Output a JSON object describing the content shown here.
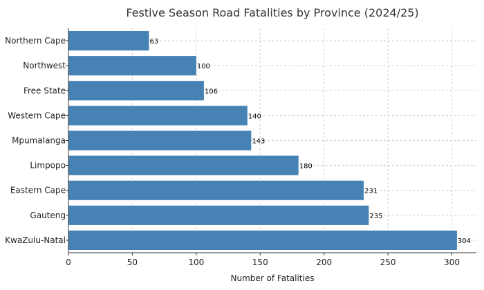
{
  "chart_data": {
    "type": "bar",
    "orientation": "horizontal",
    "title": "Festive Season Road Fatalities by Province (2024/25)",
    "xlabel": "Number of Fatalities",
    "ylabel": "",
    "categories": [
      "Northern Cape",
      "Northwest",
      "Free State",
      "Western Cape",
      "Mpumalanga",
      "Limpopo",
      "Eastern Cape",
      "Gauteng",
      "KwaZulu-Natal"
    ],
    "values": [
      63,
      100,
      106,
      140,
      143,
      180,
      231,
      235,
      304
    ],
    "xlim": [
      0,
      319.2
    ],
    "xticks": [
      0,
      50,
      100,
      150,
      200,
      250,
      300
    ],
    "grid": true,
    "bar_color": "#4682b4",
    "data_labels": true
  }
}
